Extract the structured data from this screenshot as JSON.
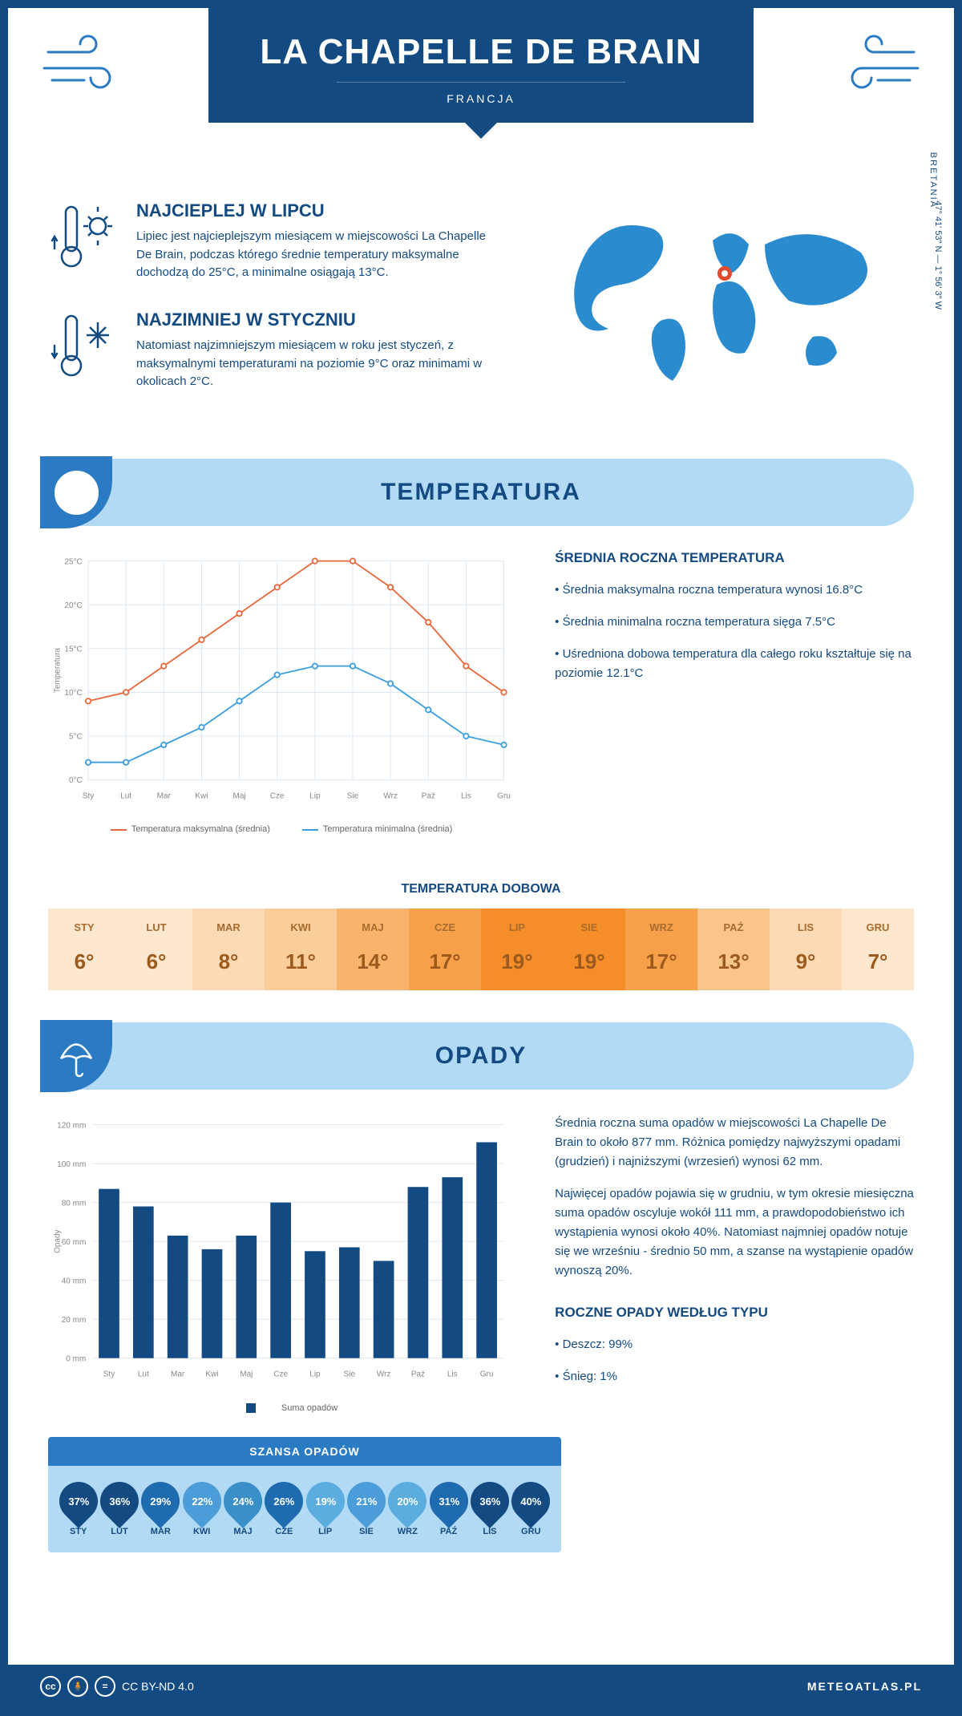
{
  "header": {
    "title": "LA CHAPELLE DE BRAIN",
    "country": "FRANCJA"
  },
  "location": {
    "region": "BRETANIA",
    "coords": "47° 41' 53\" N — 1° 56' 3\" W"
  },
  "intro": {
    "hot": {
      "title": "NAJCIEPLEJ W LIPCU",
      "text": "Lipiec jest najcieplejszym miesiącem w miejscowości La Chapelle De Brain, podczas którego średnie temperatury maksymalne dochodzą do 25°C, a minimalne osiągają 13°C."
    },
    "cold": {
      "title": "NAJZIMNIEJ W STYCZNIU",
      "text": "Natomiast najzimniejszym miesiącem w roku jest styczeń, z maksymalnymi temperaturami na poziomie 9°C oraz minimami w okolicach 2°C."
    }
  },
  "months": [
    "Sty",
    "Lut",
    "Mar",
    "Kwi",
    "Maj",
    "Cze",
    "Lip",
    "Sie",
    "Wrz",
    "Paź",
    "Lis",
    "Gru"
  ],
  "months_upper": [
    "STY",
    "LUT",
    "MAR",
    "KWI",
    "MAJ",
    "CZE",
    "LIP",
    "SIE",
    "WRZ",
    "PAŹ",
    "LIS",
    "GRU"
  ],
  "temp_section": {
    "title": "TEMPERATURA",
    "chart": {
      "ylabel": "Temperatura",
      "ylim": [
        0,
        25
      ],
      "ytick_step": 5,
      "ytick_labels": [
        "0°C",
        "5°C",
        "10°C",
        "15°C",
        "20°C",
        "25°C"
      ],
      "max_series": [
        9,
        10,
        13,
        16,
        19,
        22,
        25,
        25,
        22,
        18,
        13,
        10
      ],
      "min_series": [
        2,
        2,
        4,
        6,
        9,
        12,
        13,
        13,
        11,
        8,
        5,
        4
      ],
      "max_color": "#e8683c",
      "min_color": "#3a9ee0",
      "grid_color": "#d9e6f2",
      "legend_max": "Temperatura maksymalna (średnia)",
      "legend_min": "Temperatura minimalna (średnia)"
    },
    "side": {
      "title": "ŚREDNIA ROCZNA TEMPERATURA",
      "b1": "• Średnia maksymalna roczna temperatura wynosi 16.8°C",
      "b2": "• Średnia minimalna roczna temperatura sięga 7.5°C",
      "b3": "• Uśredniona dobowa temperatura dla całego roku kształtuje się na poziomie 12.1°C"
    },
    "daily": {
      "title": "TEMPERATURA DOBOWA",
      "vals": [
        "6°",
        "6°",
        "8°",
        "11°",
        "14°",
        "17°",
        "19°",
        "19°",
        "17°",
        "13°",
        "9°",
        "7°"
      ],
      "colors": [
        "#fde7cf",
        "#fde7cf",
        "#fcdab5",
        "#fbcd9a",
        "#f9b46b",
        "#f7a04a",
        "#f58e2a",
        "#f58e2a",
        "#f7a04a",
        "#fac58a",
        "#fcdab5",
        "#fde7cf"
      ]
    }
  },
  "rain_section": {
    "title": "OPADY",
    "chart": {
      "ylabel": "Opady",
      "ylim": [
        0,
        120
      ],
      "ytick_step": 20,
      "ytick_labels": [
        "0 mm",
        "20 mm",
        "40 mm",
        "60 mm",
        "80 mm",
        "100 mm",
        "120 mm"
      ],
      "vals": [
        87,
        78,
        63,
        56,
        63,
        80,
        55,
        57,
        50,
        88,
        93,
        111
      ],
      "bar_color": "#134a82",
      "legend": "Suma opadów"
    },
    "side": {
      "p1": "Średnia roczna suma opadów w miejscowości La Chapelle De Brain to około 877 mm. Różnica pomiędzy najwyższymi opadami (grudzień) i najniższymi (wrzesień) wynosi 62 mm.",
      "p2": "Najwięcej opadów pojawia się w grudniu, w tym okresie miesięczna suma opadów oscyluje wokół 111 mm, a prawdopodobieństwo ich wystąpienia wynosi około 40%. Natomiast najmniej opadów notuje się we wrześniu - średnio 50 mm, a szanse na wystąpienie opadów wynoszą 20%.",
      "types_title": "ROCZNE OPADY WEDŁUG TYPU",
      "t1": "• Deszcz: 99%",
      "t2": "• Śnieg: 1%"
    },
    "chance": {
      "title": "SZANSA OPADÓW",
      "vals": [
        "37%",
        "36%",
        "29%",
        "22%",
        "24%",
        "26%",
        "19%",
        "21%",
        "20%",
        "31%",
        "36%",
        "40%"
      ],
      "colors": [
        "#134a82",
        "#134a82",
        "#1e6bb0",
        "#4a9dd8",
        "#3a8fc9",
        "#1e6bb0",
        "#5bacdf",
        "#4a9dd8",
        "#5bacdf",
        "#1e6bb0",
        "#134a82",
        "#134a82"
      ]
    }
  },
  "footer": {
    "license": "CC BY-ND 4.0",
    "site": "METEOATLAS.PL"
  }
}
